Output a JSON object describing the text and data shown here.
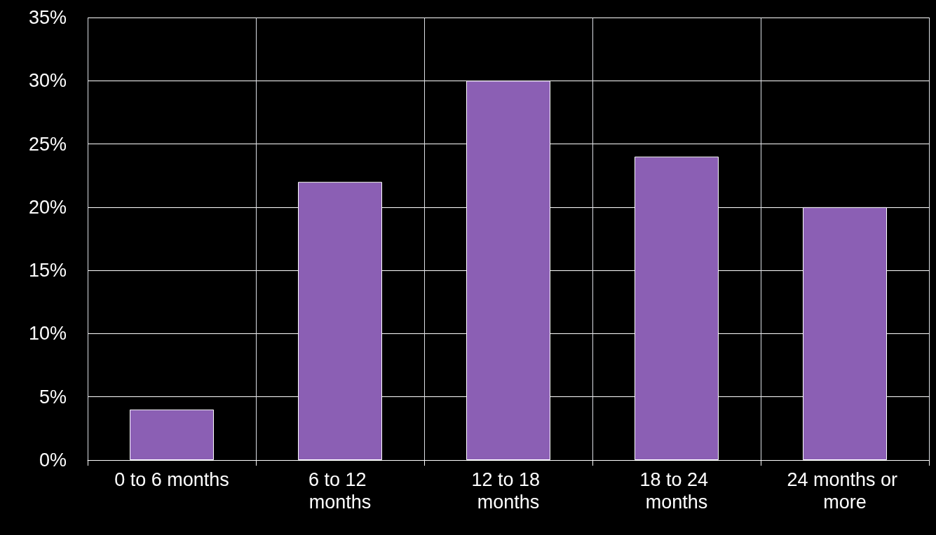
{
  "chart_data": {
    "type": "bar",
    "categories": [
      "0 to 6 months",
      "6 to 12 months",
      "12 to 18 months",
      "18 to 24 months",
      "24 months or more"
    ],
    "values": [
      4,
      22,
      30,
      24,
      20
    ],
    "color": "#8b5fb4",
    "ylim": [
      0,
      35
    ],
    "yticks": [
      {
        "value": 0,
        "label": "0%"
      },
      {
        "value": 5,
        "label": "5%"
      },
      {
        "value": 10,
        "label": "10%"
      },
      {
        "value": 15,
        "label": "15%"
      },
      {
        "value": 20,
        "label": "20%"
      },
      {
        "value": 25,
        "label": "25%"
      },
      {
        "value": 30,
        "label": "30%"
      },
      {
        "value": 35,
        "label": "35%"
      }
    ],
    "grid": true
  }
}
